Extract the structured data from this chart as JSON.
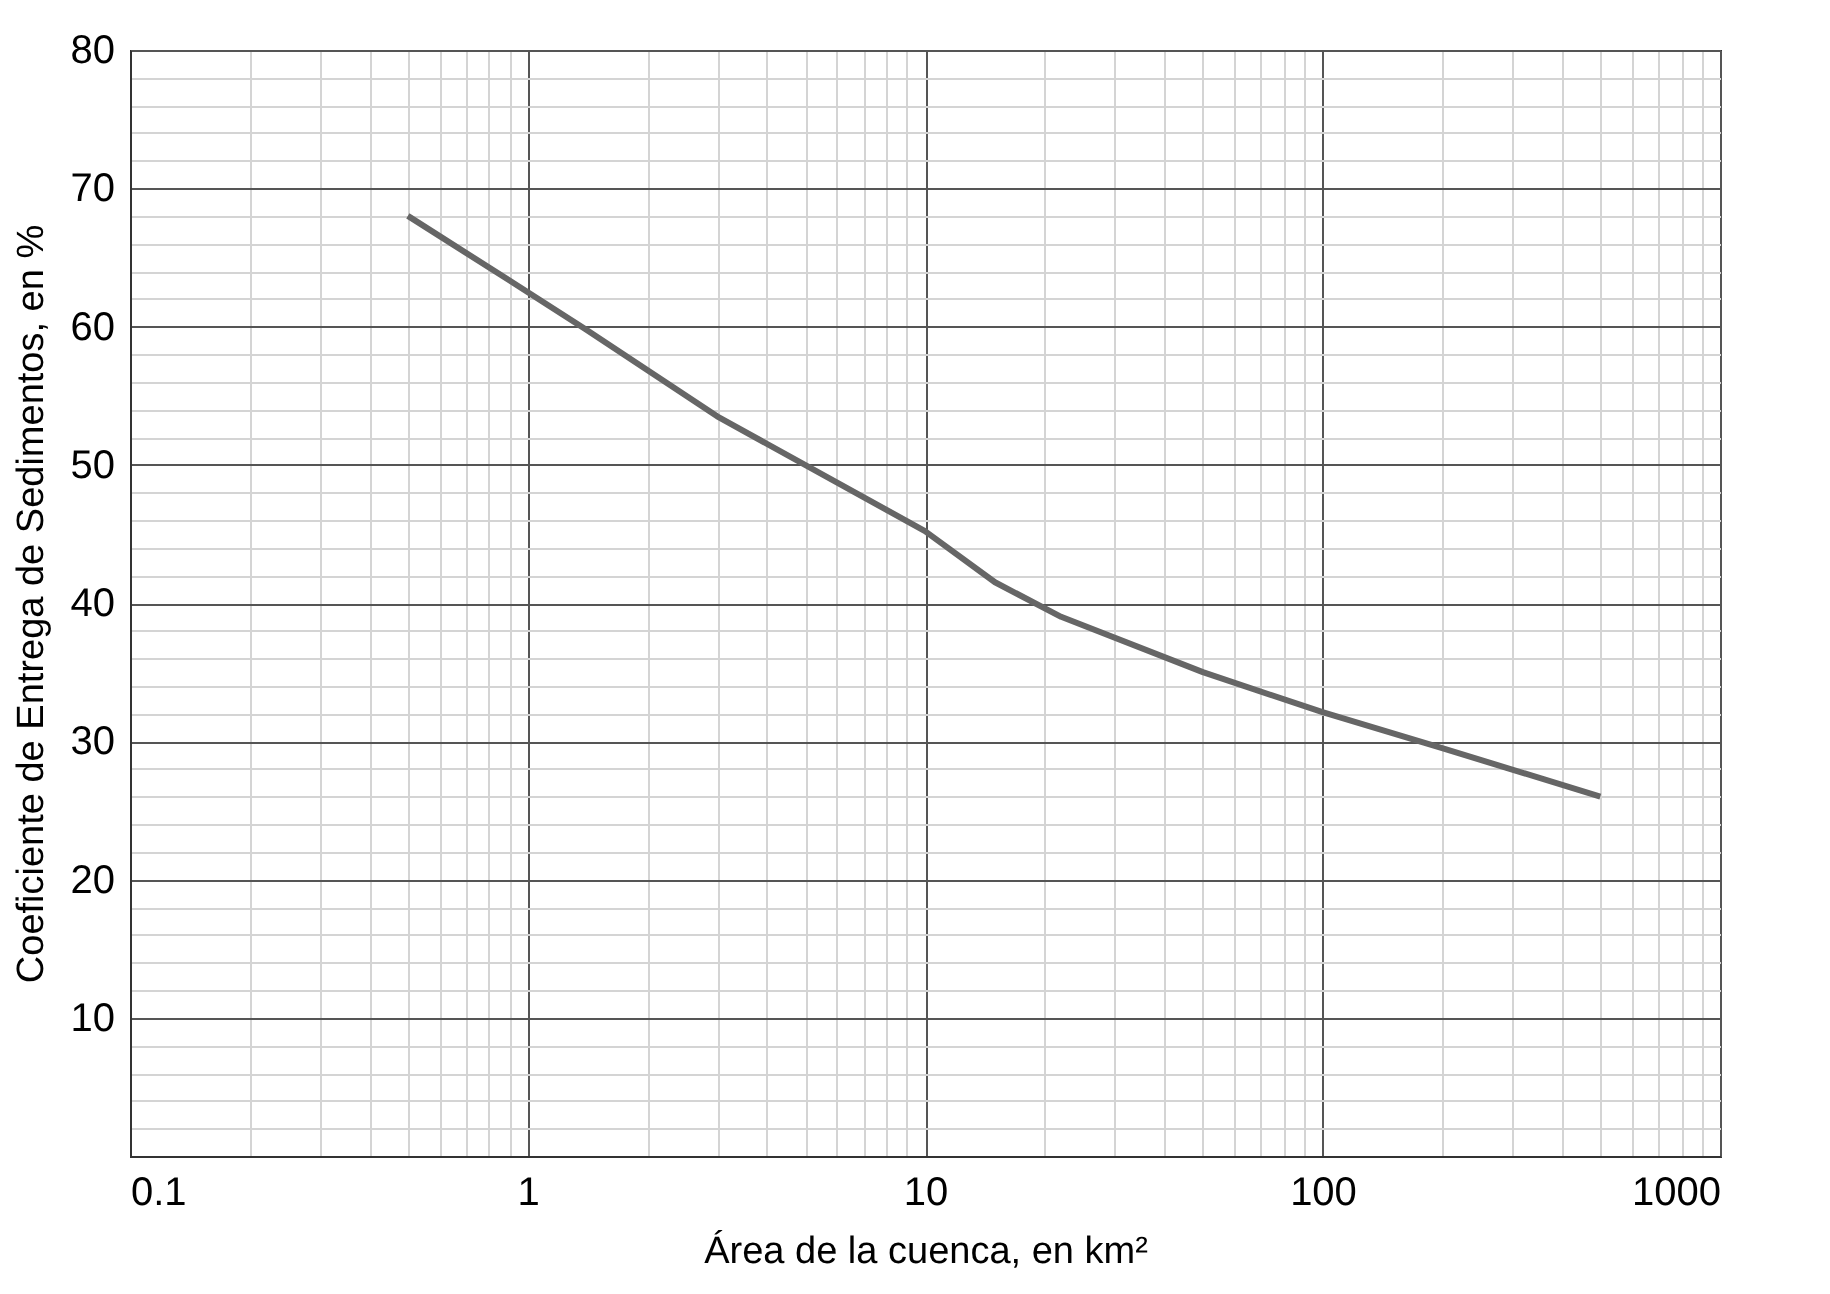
{
  "chart_data": {
    "type": "line",
    "xlabel": "Área de la cuenca, en km²",
    "ylabel": "Coeficiente de Entrega de Sedimentos, en %",
    "log": "x",
    "grid": true,
    "marker": "none",
    "line_style": "solid",
    "x": [
      0.5,
      1,
      1.4,
      3,
      10,
      15,
      22,
      50,
      100,
      200,
      500
    ],
    "series": [
      {
        "color": "#666666",
        "values": [
          68,
          62.5,
          59.8,
          53.5,
          45.2,
          41.5,
          39,
          35,
          32.1,
          29.5,
          26
        ]
      }
    ],
    "xlim": [
      0.1,
      1000
    ],
    "ylim": [
      0,
      80
    ],
    "xticks": [
      0.1,
      {
        "value": 0.2,
        "label": null
      },
      {
        "value": 0.3,
        "label": null
      },
      {
        "value": 0.4,
        "label": null
      },
      {
        "value": 0.5,
        "label": null
      },
      {
        "value": 0.6,
        "label": null
      },
      {
        "value": 0.7,
        "label": null
      },
      {
        "value": 0.8,
        "label": null
      },
      {
        "value": 0.9,
        "label": null
      },
      1,
      {
        "value": 2,
        "label": null
      },
      {
        "value": 3,
        "label": null
      },
      {
        "value": 4,
        "label": null
      },
      {
        "value": 5,
        "label": null
      },
      {
        "value": 6,
        "label": null
      },
      {
        "value": 7,
        "label": null
      },
      {
        "value": 8,
        "label": null
      },
      {
        "value": 9,
        "label": null
      },
      10,
      {
        "value": 20,
        "label": null
      },
      {
        "value": 30,
        "label": null
      },
      {
        "value": 40,
        "label": null
      },
      {
        "value": 50,
        "label": null
      },
      {
        "value": 60,
        "label": null
      },
      {
        "value": 70,
        "label": null
      },
      {
        "value": 80,
        "label": null
      },
      {
        "value": 90,
        "label": null
      },
      100,
      {
        "value": 200,
        "label": null
      },
      {
        "value": 300,
        "label": null
      },
      {
        "value": 400,
        "label": null
      },
      {
        "value": 500,
        "label": null
      },
      {
        "value": 600,
        "label": null
      },
      {
        "value": 700,
        "label": null
      },
      {
        "value": 800,
        "label": null
      },
      {
        "value": 900,
        "label": null
      },
      1000
    ],
    "yticks": [
      {
        "value": 0,
        "label": null
      },
      {
        "value": 2,
        "label": null
      },
      {
        "value": 4,
        "label": null
      },
      {
        "value": 6,
        "label": null
      },
      {
        "value": 8,
        "label": null
      },
      10,
      {
        "value": 12,
        "label": null
      },
      {
        "value": 14,
        "label": null
      },
      {
        "value": 16,
        "label": null
      },
      {
        "value": 18,
        "label": null
      },
      20,
      {
        "value": 22,
        "label": null
      },
      {
        "value": 24,
        "label": null
      },
      {
        "value": 26,
        "label": null
      },
      {
        "value": 28,
        "label": null
      },
      30,
      {
        "value": 32,
        "label": null
      },
      {
        "value": 34,
        "label": null
      },
      {
        "value": 36,
        "label": null
      },
      {
        "value": 38,
        "label": null
      },
      40,
      {
        "value": 42,
        "label": null
      },
      {
        "value": 44,
        "label": null
      },
      {
        "value": 46,
        "label": null
      },
      {
        "value": 48,
        "label": null
      },
      50,
      {
        "value": 52,
        "label": null
      },
      {
        "value": 54,
        "label": null
      },
      {
        "value": 56,
        "label": null
      },
      {
        "value": 58,
        "label": null
      },
      60,
      {
        "value": 62,
        "label": null
      },
      {
        "value": 64,
        "label": null
      },
      {
        "value": 66,
        "label": null
      },
      {
        "value": 68,
        "label": null
      },
      70,
      {
        "value": 72,
        "label": null
      },
      {
        "value": 74,
        "label": null
      },
      {
        "value": 76,
        "label": null
      },
      {
        "value": 78,
        "label": null
      },
      80
    ]
  }
}
